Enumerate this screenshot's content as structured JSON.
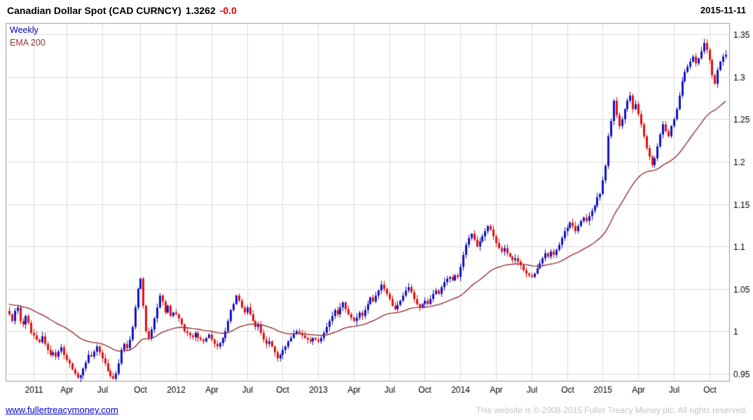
{
  "header": {
    "title": "Canadian Dollar Spot (CAD CURNCY)",
    "last_price": "1.3262",
    "change": "-0.0",
    "date": "2015-11-11"
  },
  "legend": {
    "series1": "Weekly",
    "series2": "EMA 200"
  },
  "footer": {
    "link": "www.fullertreacymoney.com",
    "copyright": "This website is © 2008-2015 Fuller Treacy Money plc. All rights reserved."
  },
  "colors": {
    "up": "#1212c8",
    "down": "#e01212",
    "ema": "#993333",
    "grid": "#dddddd",
    "border": "#999999",
    "text": "#000000"
  },
  "chart_data": {
    "type": "candlestick",
    "title": "Canadian Dollar Spot (CAD CURNCY)",
    "interval": "Weekly",
    "overlay": "EMA 200",
    "start_date": "2010-11-05",
    "step_days": 7,
    "ylim": [
      0.9415,
      1.3635
    ],
    "y_ticks": [
      0.95,
      1,
      1.05,
      1.1,
      1.15,
      1.2,
      1.25,
      1.3,
      1.35
    ],
    "x_tick_labels": [
      "2011",
      "Apr",
      "Jul",
      "Oct",
      "2012",
      "Apr",
      "Jul",
      "Oct",
      "2013",
      "Apr",
      "Jul",
      "Oct",
      "2014",
      "Apr",
      "Jul",
      "Oct",
      "2015",
      "Apr",
      "Jul",
      "Oct"
    ],
    "grid": true,
    "legend_position": "top-left",
    "last_close": 1.3262,
    "closes": [
      1.02,
      1.012,
      1.024,
      1.028,
      1.012,
      1.008,
      1.018,
      1.01,
      0.998,
      0.995,
      0.99,
      0.987,
      0.994,
      0.985,
      0.978,
      0.972,
      0.975,
      0.97,
      0.976,
      0.981,
      0.972,
      0.966,
      0.962,
      0.955,
      0.95,
      0.945,
      0.948,
      0.956,
      0.963,
      0.972,
      0.97,
      0.976,
      0.982,
      0.975,
      0.968,
      0.962,
      0.953,
      0.947,
      0.944,
      0.95,
      0.962,
      0.978,
      0.985,
      0.98,
      0.99,
      1.005,
      1.028,
      1.05,
      1.062,
      1.03,
      1.0,
      0.992,
      1.002,
      1.015,
      1.028,
      1.042,
      1.035,
      1.022,
      1.03,
      1.018,
      1.022,
      1.02,
      1.015,
      1.008,
      1.0,
      0.998,
      0.995,
      0.993,
      0.998,
      0.992,
      0.99,
      0.988,
      0.992,
      0.996,
      0.99,
      0.985,
      0.982,
      0.986,
      0.992,
      1.0,
      1.012,
      1.025,
      1.032,
      1.042,
      1.036,
      1.028,
      1.022,
      1.028,
      1.02,
      1.012,
      1.005,
      1.008,
      0.998,
      0.99,
      0.985,
      0.988,
      0.982,
      0.975,
      0.968,
      0.972,
      0.978,
      0.982,
      0.988,
      0.992,
      0.997,
      1.0,
      0.998,
      0.995,
      0.992,
      0.99,
      0.988,
      0.992,
      0.99,
      0.988,
      0.992,
      0.998,
      1.005,
      1.012,
      1.018,
      1.025,
      1.02,
      1.028,
      1.034,
      1.026,
      1.02,
      1.016,
      1.012,
      1.016,
      1.022,
      1.018,
      1.025,
      1.032,
      1.04,
      1.035,
      1.042,
      1.048,
      1.055,
      1.05,
      1.044,
      1.038,
      1.03,
      1.026,
      1.031,
      1.036,
      1.042,
      1.048,
      1.052,
      1.046,
      1.038,
      1.032,
      1.028,
      1.032,
      1.036,
      1.032,
      1.038,
      1.044,
      1.048,
      1.044,
      1.052,
      1.058,
      1.062,
      1.064,
      1.06,
      1.066,
      1.064,
      1.076,
      1.09,
      1.102,
      1.11,
      1.115,
      1.108,
      1.1,
      1.106,
      1.112,
      1.118,
      1.124,
      1.12,
      1.112,
      1.104,
      1.098,
      1.094,
      1.098,
      1.092,
      1.088,
      1.084,
      1.086,
      1.082,
      1.078,
      1.072,
      1.068,
      1.066,
      1.064,
      1.068,
      1.074,
      1.08,
      1.086,
      1.092,
      1.088,
      1.094,
      1.09,
      1.096,
      1.102,
      1.11,
      1.118,
      1.122,
      1.128,
      1.124,
      1.118,
      1.124,
      1.13,
      1.134,
      1.13,
      1.136,
      1.142,
      1.148,
      1.158,
      1.162,
      1.178,
      1.195,
      1.23,
      1.248,
      1.272,
      1.255,
      1.242,
      1.25,
      1.262,
      1.272,
      1.278,
      1.262,
      1.268,
      1.256,
      1.244,
      1.23,
      1.216,
      1.206,
      1.196,
      1.204,
      1.218,
      1.232,
      1.244,
      1.236,
      1.23,
      1.242,
      1.25,
      1.262,
      1.278,
      1.295,
      1.306,
      1.312,
      1.318,
      1.324,
      1.316,
      1.322,
      1.33,
      1.34,
      1.332,
      1.32,
      1.302,
      1.292,
      1.308,
      1.318,
      1.324,
      1.3262
    ]
  }
}
